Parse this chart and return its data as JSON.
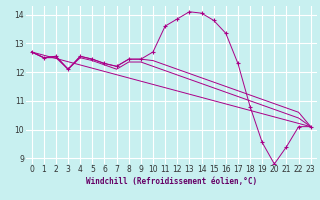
{
  "xlabel": "Windchill (Refroidissement éolien,°C)",
  "bg_color": "#c8f0f0",
  "grid_color": "#ffffff",
  "line_color": "#aa0088",
  "marker": "+",
  "xlim": [
    -0.5,
    23.5
  ],
  "ylim": [
    8.8,
    14.3
  ],
  "yticks": [
    9,
    10,
    11,
    12,
    13,
    14
  ],
  "xticks": [
    0,
    1,
    2,
    3,
    4,
    5,
    6,
    7,
    8,
    9,
    10,
    11,
    12,
    13,
    14,
    15,
    16,
    17,
    18,
    19,
    20,
    21,
    22,
    23
  ],
  "curve1_x": [
    0,
    1,
    2,
    3,
    4,
    5,
    6,
    7,
    8,
    9,
    10,
    11,
    12,
    13,
    14,
    15,
    16,
    17,
    18,
    19,
    20,
    21,
    22,
    23
  ],
  "curve1_y": [
    12.7,
    12.5,
    12.55,
    12.1,
    12.55,
    12.45,
    12.3,
    12.2,
    12.45,
    12.45,
    12.7,
    13.6,
    13.85,
    14.1,
    14.05,
    13.8,
    13.35,
    12.3,
    10.8,
    9.55,
    8.8,
    9.4,
    10.1,
    10.1
  ],
  "curve2_x": [
    0,
    1,
    2,
    3,
    4,
    5,
    6,
    7,
    8,
    9,
    10,
    11,
    12,
    13,
    14,
    15,
    16,
    17,
    18,
    19,
    20,
    21,
    22,
    23
  ],
  "curve2_y": [
    12.7,
    12.5,
    12.55,
    12.1,
    12.55,
    12.45,
    12.3,
    12.2,
    12.45,
    12.45,
    12.4,
    12.25,
    12.1,
    11.95,
    11.8,
    11.65,
    11.5,
    11.35,
    11.2,
    11.05,
    10.9,
    10.75,
    10.6,
    10.1
  ],
  "curve3_x": [
    0,
    1,
    2,
    3,
    4,
    5,
    6,
    7,
    8,
    9,
    10,
    11,
    12,
    13,
    14,
    15,
    16,
    17,
    18,
    19,
    20,
    21,
    22,
    23
  ],
  "curve3_y": [
    12.7,
    12.5,
    12.5,
    12.1,
    12.5,
    12.4,
    12.25,
    12.1,
    12.35,
    12.35,
    12.2,
    12.05,
    11.9,
    11.75,
    11.6,
    11.45,
    11.3,
    11.15,
    11.0,
    10.85,
    10.7,
    10.55,
    10.4,
    10.1
  ],
  "curve4_x": [
    0,
    23
  ],
  "curve4_y": [
    12.7,
    10.1
  ],
  "xlabel_fontsize": 5.5,
  "tick_fontsize": 5.5
}
